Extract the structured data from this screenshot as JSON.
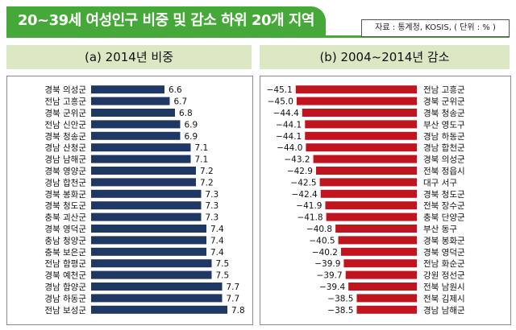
{
  "header": {
    "title": "20~39세 여성인구 비중 및 감소 하위 20개 지역",
    "source": "자료 : 통계청, KOSIS, ( 단위 : % )"
  },
  "colors": {
    "accent": "#47a83a",
    "panel_header": "#dce7c4",
    "left_bar": "#1f3763",
    "right_bar": "#c0151e"
  },
  "chart_data": [
    {
      "type": "bar",
      "orientation": "horizontal",
      "title": "(a) 2014년 비중",
      "categories": [
        "경북 의성군",
        "전남 고흥군",
        "경북 군위군",
        "전남 신안군",
        "경북 청송군",
        "경남 산청군",
        "경남 남해군",
        "경북 영양군",
        "경남 합천군",
        "경북 봉화군",
        "경북 청도군",
        "충북 괴산군",
        "경북 영덕군",
        "충남 청양군",
        "충북 보은군",
        "전남 함평군",
        "경북 예천군",
        "경남 함양군",
        "경남 하동군",
        "전남 보성군"
      ],
      "values": [
        6.6,
        6.7,
        6.8,
        6.9,
        6.9,
        7.1,
        7.1,
        7.2,
        7.2,
        7.3,
        7.3,
        7.3,
        7.4,
        7.4,
        7.4,
        7.5,
        7.5,
        7.7,
        7.7,
        7.8
      ],
      "labels": [
        "6.6",
        "6.7",
        "6.8",
        "6.9",
        "6.9",
        "7.1",
        "7.1",
        "7.2",
        "7.2",
        "7.3",
        "7.3",
        "7.3",
        "7.4",
        "7.4",
        "7.4",
        "7.5",
        "7.5",
        "7.7",
        "7.7",
        "7.8"
      ],
      "xlim": [
        5.2,
        8.0
      ]
    },
    {
      "type": "bar",
      "orientation": "horizontal",
      "title": "(b) 2004~2014년 감소",
      "categories": [
        "전남 고흥군",
        "경북 군위군",
        "경북 청송군",
        "부산 영도구",
        "경남 하동군",
        "경남 합천군",
        "경북 의성군",
        "전북 정읍시",
        "대구 서구",
        "경북 청도군",
        "전북 장수군",
        "충북 단양군",
        "부산 동구",
        "경북 봉화군",
        "경북 영덕군",
        "전남 화순군",
        "강원 정선군",
        "전북 남원시",
        "전북 김제시",
        "경남 남해군"
      ],
      "values": [
        -45.1,
        -45.0,
        -44.4,
        -44.1,
        -44.1,
        -44.0,
        -43.2,
        -42.9,
        -42.5,
        -42.4,
        -41.9,
        -41.8,
        -40.8,
        -40.5,
        -40.2,
        -39.9,
        -39.7,
        -39.4,
        -38.5,
        -38.5
      ],
      "labels": [
        "−45.1",
        "−45.0",
        "−44.4",
        "−44.1",
        "−44.1",
        "−44.0",
        "−43.2",
        "−42.9",
        "−42.5",
        "−42.4",
        "−41.9",
        "−41.8",
        "−40.8",
        "−40.5",
        "−40.2",
        "−39.9",
        "−39.7",
        "−39.4",
        "−38.5",
        "−38.5"
      ],
      "xlim": [
        -47.0,
        -32.0
      ]
    }
  ]
}
